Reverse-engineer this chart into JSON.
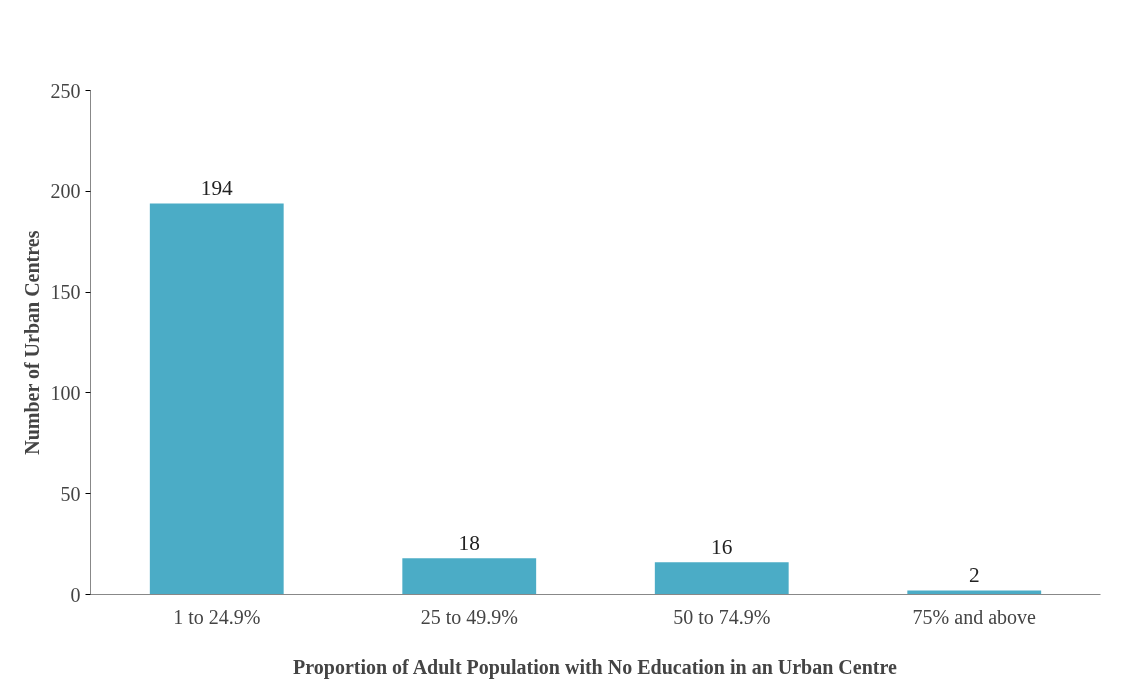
{
  "chart_data": {
    "type": "bar",
    "xlabel": "Proportion of Adult Population with No Education in an Urban Centre",
    "ylabel": "Number of Urban Centres",
    "categories": [
      "1 to 24.9%",
      "25 to 49.9%",
      "50 to 74.9%",
      "75% and above"
    ],
    "values": [
      194,
      18,
      16,
      2
    ],
    "color": "#4bacc6",
    "data_labels": true,
    "grid": false,
    "ylim": [
      0,
      250
    ],
    "yticks": [
      0,
      50,
      100,
      150,
      200,
      250
    ]
  }
}
